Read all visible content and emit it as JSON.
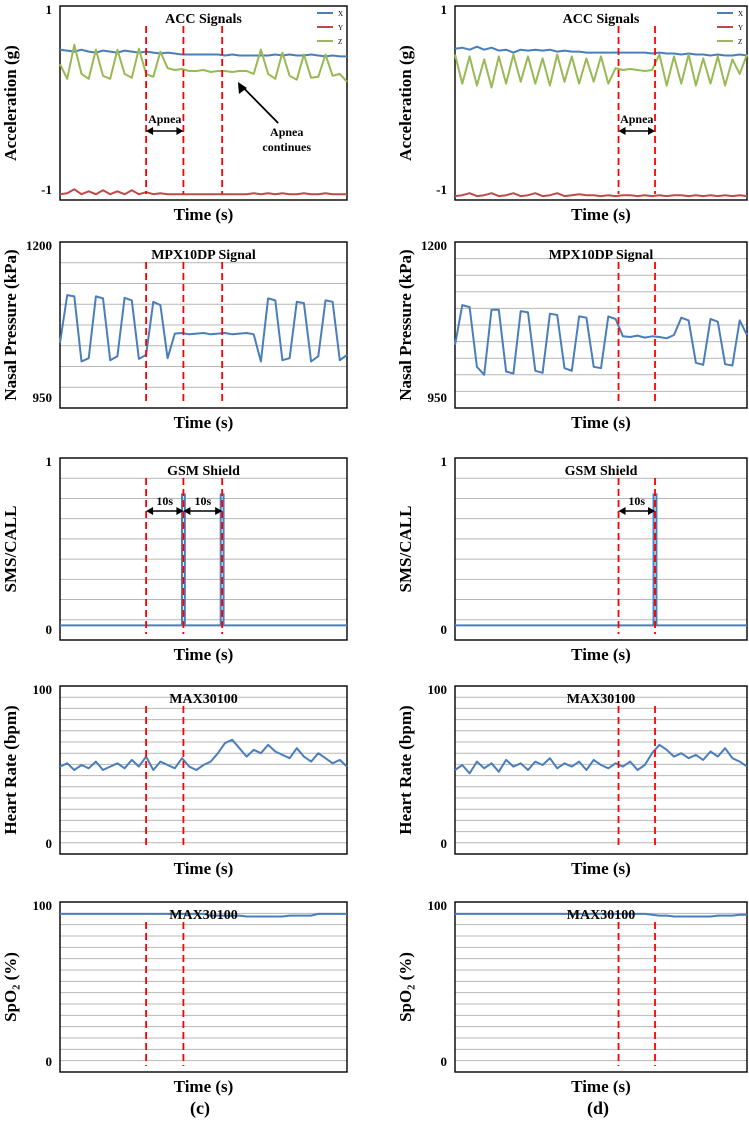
{
  "captions": [
    "(c)",
    "(d)"
  ],
  "colors": {
    "x": "#4a7ebb",
    "y": "#be4b48",
    "z": "#98b954",
    "signal": "#4a7ebb",
    "marker": "#ff0000",
    "grid": "#b7b7b7",
    "frame": "#000000"
  },
  "chart_data": [
    {
      "type": "line",
      "panel": "c",
      "row": 0,
      "title": "ACC Signals",
      "xlabel": "Time (s)",
      "ylabel": "Acceleration (g)",
      "yticks": [
        "1",
        "-1"
      ],
      "ylim": [
        -1,
        1
      ],
      "grid": false,
      "legend": [
        "X",
        "Y",
        "Z"
      ],
      "legend_position": "top-right",
      "event_times": [
        0.3,
        0.43,
        0.565
      ],
      "annotations": [
        "Apnea",
        "Apnea",
        "continues"
      ],
      "series": [
        {
          "name": "X",
          "color": "x",
          "values": [
            0.55,
            0.54,
            0.53,
            0.55,
            0.53,
            0.52,
            0.54,
            0.53,
            0.52,
            0.54,
            0.53,
            0.52,
            0.53,
            0.52,
            0.51,
            0.52,
            0.51,
            0.5,
            0.5,
            0.5,
            0.5,
            0.5,
            0.5,
            0.49,
            0.5,
            0.49,
            0.49,
            0.49,
            0.49,
            0.49,
            0.5,
            0.49,
            0.5,
            0.49,
            0.49,
            0.5,
            0.49,
            0.48,
            0.49,
            0.48,
            0.48
          ]
        },
        {
          "name": "Y",
          "color": "y",
          "values": [
            -0.94,
            -0.93,
            -0.89,
            -0.94,
            -0.91,
            -0.94,
            -0.9,
            -0.94,
            -0.91,
            -0.94,
            -0.9,
            -0.94,
            -0.92,
            -0.94,
            -0.93,
            -0.94,
            -0.94,
            -0.94,
            -0.94,
            -0.94,
            -0.94,
            -0.94,
            -0.94,
            -0.94,
            -0.94,
            -0.94,
            -0.94,
            -0.93,
            -0.94,
            -0.93,
            -0.94,
            -0.93,
            -0.94,
            -0.94,
            -0.93,
            -0.94,
            -0.94,
            -0.93,
            -0.94,
            -0.94,
            -0.94
          ]
        },
        {
          "name": "Z",
          "color": "z",
          "values": [
            0.4,
            0.25,
            0.6,
            0.3,
            0.25,
            0.55,
            0.28,
            0.25,
            0.55,
            0.3,
            0.26,
            0.56,
            0.3,
            0.27,
            0.53,
            0.36,
            0.34,
            0.35,
            0.33,
            0.33,
            0.34,
            0.32,
            0.33,
            0.33,
            0.32,
            0.33,
            0.33,
            0.3,
            0.55,
            0.3,
            0.25,
            0.52,
            0.28,
            0.24,
            0.5,
            0.26,
            0.27,
            0.5,
            0.28,
            0.3,
            0.22
          ]
        }
      ]
    },
    {
      "type": "line",
      "panel": "c",
      "row": 1,
      "title": "MPX10DP Signal",
      "xlabel": "Time (s)",
      "ylabel": "Nasal Pressure (kPa)",
      "yticks": [
        "1200",
        "950"
      ],
      "ylim": [
        950,
        1200
      ],
      "grid": true,
      "gridlines": 7,
      "event_times": [
        0.3,
        0.43,
        0.565
      ],
      "series": [
        {
          "name": "Pressure",
          "color": "signal",
          "values": [
            1048,
            1120,
            1118,
            1020,
            1025,
            1118,
            1115,
            1022,
            1028,
            1116,
            1112,
            1024,
            1030,
            1110,
            1105,
            1025,
            1062,
            1063,
            1061,
            1062,
            1063,
            1061,
            1062,
            1063,
            1061,
            1062,
            1063,
            1061,
            1020,
            1115,
            1112,
            1022,
            1025,
            1110,
            1108,
            1020,
            1028,
            1112,
            1110,
            1022,
            1030
          ]
        }
      ]
    },
    {
      "type": "line",
      "panel": "c",
      "row": 2,
      "title": "GSM Shield",
      "xlabel": "Time (s)",
      "ylabel": "SMS/CALL",
      "yticks": [
        "1",
        "0"
      ],
      "ylim": [
        0,
        1
      ],
      "grid": true,
      "gridlines": 8,
      "event_times": [
        0.3,
        0.43,
        0.565
      ],
      "interval_labels": [
        "10s",
        "10s"
      ],
      "series": [
        {
          "name": "Signal",
          "color": "signal",
          "values": [
            0.08,
            0.08,
            0.08,
            0.08,
            0.08,
            0.08,
            0.08,
            0.08,
            0.08,
            0.08,
            0.08,
            0.08,
            0.08,
            0.08,
            0.08,
            0.08,
            0.08,
            0.08,
            0.08,
            0.08,
            0.08,
            0.08,
            0.08,
            0.08,
            0.08,
            0.08,
            0.08,
            0.08,
            0.08,
            0.08,
            0.08,
            0.08,
            0.08,
            0.08,
            0.08,
            0.08,
            0.08,
            0.08,
            0.08,
            0.08,
            0.08
          ]
        }
      ],
      "pulses": [
        {
          "start": 0.425,
          "end": 0.435,
          "value": 0.8
        },
        {
          "start": 0.56,
          "end": 0.57,
          "value": 0.8
        }
      ]
    },
    {
      "type": "line",
      "panel": "c",
      "row": 3,
      "title": "MAX30100",
      "xlabel": "Time (s)",
      "ylabel": "Heart Rate (bpm)",
      "yticks": [
        "100",
        "0"
      ],
      "ylim": [
        0,
        100
      ],
      "grid": true,
      "gridlines": 14,
      "event_times": [
        0.3,
        0.43
      ],
      "series": [
        {
          "name": "Heart Rate",
          "color": "signal",
          "values": [
            52,
            54,
            50,
            53,
            51,
            55,
            50,
            52,
            54,
            51,
            56,
            52,
            58,
            50,
            55,
            53,
            51,
            57,
            52,
            50,
            53,
            55,
            60,
            66,
            68,
            63,
            58,
            62,
            60,
            65,
            61,
            59,
            57,
            63,
            58,
            55,
            60,
            57,
            54,
            56,
            52
          ]
        }
      ]
    },
    {
      "type": "line",
      "panel": "c",
      "row": 4,
      "title": "MAX30100",
      "xlabel": "Time (s)",
      "ylabel": "SpO₂ (%)",
      "yticks": [
        "100",
        "0"
      ],
      "ylim": [
        0,
        100
      ],
      "grid": true,
      "gridlines": 14,
      "event_times": [
        0.3,
        0.43
      ],
      "series": [
        {
          "name": "SpO2",
          "color": "signal",
          "values": [
            93,
            93,
            93,
            93,
            93,
            93,
            93,
            93,
            93,
            93,
            93,
            93,
            93,
            93,
            93,
            93,
            93,
            93,
            93,
            93,
            93,
            92,
            92,
            92,
            92,
            92,
            91.5,
            91.5,
            91.5,
            91.5,
            91.5,
            91.5,
            92,
            92,
            92,
            92,
            93,
            93,
            93,
            93,
            93
          ]
        }
      ]
    },
    {
      "type": "line",
      "panel": "d",
      "row": 0,
      "title": "ACC Signals",
      "xlabel": "Time (s)",
      "ylabel": "Acceleration (g)",
      "yticks": [
        "1",
        "-1"
      ],
      "ylim": [
        -1,
        1
      ],
      "grid": false,
      "legend": [
        "X",
        "Y",
        "Z"
      ],
      "legend_position": "top-right",
      "event_times": [
        0.56,
        0.685
      ],
      "annotations": [
        "Apnea"
      ],
      "series": [
        {
          "name": "X",
          "color": "x",
          "values": [
            0.56,
            0.57,
            0.55,
            0.58,
            0.55,
            0.57,
            0.54,
            0.55,
            0.52,
            0.55,
            0.54,
            0.55,
            0.54,
            0.55,
            0.53,
            0.54,
            0.53,
            0.53,
            0.52,
            0.52,
            0.52,
            0.52,
            0.52,
            0.52,
            0.52,
            0.52,
            0.52,
            0.51,
            0.52,
            0.51,
            0.51,
            0.5,
            0.51,
            0.5,
            0.5,
            0.49,
            0.5,
            0.49,
            0.49,
            0.5,
            0.49
          ]
        },
        {
          "name": "Y",
          "color": "y",
          "values": [
            -0.96,
            -0.95,
            -0.93,
            -0.96,
            -0.95,
            -0.93,
            -0.96,
            -0.95,
            -0.93,
            -0.96,
            -0.95,
            -0.93,
            -0.96,
            -0.95,
            -0.93,
            -0.96,
            -0.95,
            -0.94,
            -0.95,
            -0.95,
            -0.96,
            -0.95,
            -0.96,
            -0.95,
            -0.95,
            -0.96,
            -0.95,
            -0.96,
            -0.95,
            -0.96,
            -0.95,
            -0.95,
            -0.96,
            -0.95,
            -0.96,
            -0.95,
            -0.96,
            -0.95,
            -0.96,
            -0.95,
            -0.96
          ]
        },
        {
          "name": "Z",
          "color": "z",
          "values": [
            0.5,
            0.2,
            0.48,
            0.18,
            0.45,
            0.16,
            0.48,
            0.2,
            0.5,
            0.22,
            0.48,
            0.2,
            0.46,
            0.18,
            0.5,
            0.22,
            0.48,
            0.2,
            0.46,
            0.22,
            0.48,
            0.2,
            0.36,
            0.34,
            0.35,
            0.34,
            0.33,
            0.34,
            0.5,
            0.18,
            0.48,
            0.2,
            0.5,
            0.18,
            0.46,
            0.2,
            0.48,
            0.18,
            0.45,
            0.3,
            0.5
          ]
        }
      ]
    },
    {
      "type": "line",
      "panel": "d",
      "row": 1,
      "title": "MPX10DP Signal",
      "xlabel": "Time (s)",
      "ylabel": "Nasal Pressure (kPa)",
      "yticks": [
        "1200",
        "950"
      ],
      "ylim": [
        950,
        1200
      ],
      "grid": true,
      "gridlines": 9,
      "event_times": [
        0.56,
        0.685
      ],
      "series": [
        {
          "name": "Pressure",
          "color": "signal",
          "values": [
            1045,
            1105,
            1102,
            1012,
            1000,
            1098,
            1098,
            1005,
            1002,
            1096,
            1094,
            1006,
            1003,
            1092,
            1090,
            1010,
            1006,
            1088,
            1086,
            1012,
            1010,
            1088,
            1084,
            1058,
            1057,
            1059,
            1056,
            1058,
            1057,
            1055,
            1060,
            1086,
            1082,
            1018,
            1015,
            1084,
            1080,
            1016,
            1014,
            1082,
            1060
          ]
        }
      ]
    },
    {
      "type": "line",
      "panel": "d",
      "row": 2,
      "title": "GSM Shield",
      "xlabel": "Time (s)",
      "ylabel": "SMS/CALL",
      "yticks": [
        "1",
        "0"
      ],
      "ylim": [
        0,
        1
      ],
      "grid": true,
      "gridlines": 8,
      "event_times": [
        0.56,
        0.685
      ],
      "interval_labels": [
        "10s"
      ],
      "series": [
        {
          "name": "Signal",
          "color": "signal",
          "values": [
            0.08,
            0.08,
            0.08,
            0.08,
            0.08,
            0.08,
            0.08,
            0.08,
            0.08,
            0.08,
            0.08,
            0.08,
            0.08,
            0.08,
            0.08,
            0.08,
            0.08,
            0.08,
            0.08,
            0.08,
            0.08,
            0.08,
            0.08,
            0.08,
            0.08,
            0.08,
            0.08,
            0.08,
            0.08,
            0.08,
            0.08,
            0.08,
            0.08,
            0.08,
            0.08,
            0.08,
            0.08,
            0.08,
            0.08,
            0.08,
            0.08
          ]
        }
      ],
      "pulses": [
        {
          "start": 0.68,
          "end": 0.69,
          "value": 0.8
        }
      ]
    },
    {
      "type": "line",
      "panel": "d",
      "row": 3,
      "title": "MAX30100",
      "xlabel": "Time (s)",
      "ylabel": "Heart Rate (bpm)",
      "yticks": [
        "100",
        "0"
      ],
      "ylim": [
        0,
        100
      ],
      "grid": true,
      "gridlines": 14,
      "event_times": [
        0.56,
        0.685
      ],
      "series": [
        {
          "name": "Heart Rate",
          "color": "signal",
          "values": [
            50,
            53,
            48,
            55,
            51,
            54,
            49,
            56,
            52,
            54,
            50,
            55,
            53,
            57,
            51,
            54,
            52,
            55,
            50,
            56,
            53,
            51,
            54,
            52,
            55,
            50,
            53,
            60,
            65,
            62,
            58,
            60,
            57,
            59,
            56,
            61,
            58,
            63,
            57,
            55,
            52
          ]
        }
      ]
    },
    {
      "type": "line",
      "panel": "d",
      "row": 4,
      "title": "MAX30100",
      "xlabel": "Time (s)",
      "ylabel": "SpO₂ (%)",
      "yticks": [
        "100",
        "0"
      ],
      "ylim": [
        0,
        100
      ],
      "grid": true,
      "gridlines": 14,
      "event_times": [
        0.56,
        0.685
      ],
      "series": [
        {
          "name": "SpO2",
          "color": "signal",
          "values": [
            93,
            93,
            93,
            93,
            93,
            93,
            93,
            93,
            93,
            93,
            93,
            93,
            93,
            93,
            93,
            93,
            93,
            93,
            93,
            93,
            93,
            93,
            93,
            93,
            93,
            93,
            93,
            92.5,
            92,
            92,
            91.5,
            91.5,
            91.5,
            91.5,
            91.5,
            91.5,
            92,
            92,
            92,
            92.5,
            92.5
          ]
        }
      ]
    }
  ]
}
